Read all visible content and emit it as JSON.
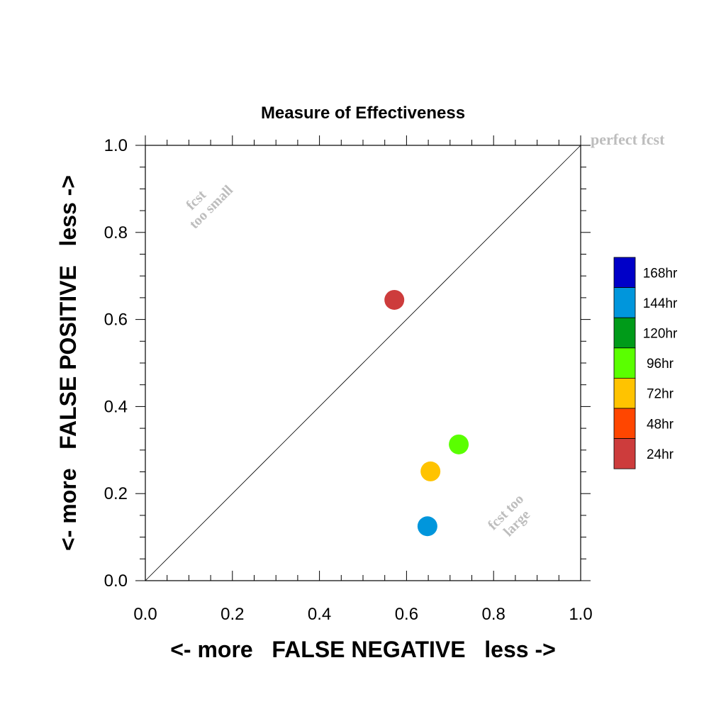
{
  "chart_data": {
    "type": "scatter",
    "title": "Measure of Effectiveness",
    "xlabel": "<- more   FALSE NEGATIVE   less ->",
    "ylabel": "<- more   FALSE POSITIVE   less ->",
    "xlim": [
      0.0,
      1.0
    ],
    "ylim": [
      0.0,
      1.0
    ],
    "x_ticks": [
      "0.0",
      "0.2",
      "0.4",
      "0.6",
      "0.8",
      "1.0"
    ],
    "y_ticks": [
      "0.0",
      "0.2",
      "0.4",
      "0.6",
      "0.8",
      "1.0"
    ],
    "x_tick_values": [
      0.0,
      0.2,
      0.4,
      0.6,
      0.8,
      1.0
    ],
    "y_tick_values": [
      0.0,
      0.2,
      0.4,
      0.6,
      0.8,
      1.0
    ],
    "grid": false,
    "reference_line": {
      "from": [
        0,
        0
      ],
      "to": [
        1,
        1
      ]
    },
    "annotations": {
      "perfect": "perfect fcst",
      "small_line1": "fcst",
      "small_line2": "too small",
      "large_line1": "fcst too",
      "large_line2": "large"
    },
    "annotation_color": "#bdbdbd",
    "legend_placement": "right",
    "legend": [
      {
        "label": "168hr",
        "color": "#0000c8"
      },
      {
        "label": "144hr",
        "color": "#0096dc"
      },
      {
        "label": "120hr",
        "color": "#009b19"
      },
      {
        "label": "96hr",
        "color": "#5aff00"
      },
      {
        "label": "72hr",
        "color": "#ffc300"
      },
      {
        "label": "48hr",
        "color": "#ff4600"
      },
      {
        "label": "24hr",
        "color": "#cd3c3c"
      }
    ],
    "points": [
      {
        "series": "24hr",
        "x": 0.572,
        "y": 0.645,
        "color": "#cd3c3c"
      },
      {
        "series": "96hr",
        "x": 0.72,
        "y": 0.313,
        "color": "#5aff00"
      },
      {
        "series": "72hr",
        "x": 0.655,
        "y": 0.251,
        "color": "#ffc300"
      },
      {
        "series": "144hr",
        "x": 0.648,
        "y": 0.125,
        "color": "#0096dc"
      }
    ]
  }
}
